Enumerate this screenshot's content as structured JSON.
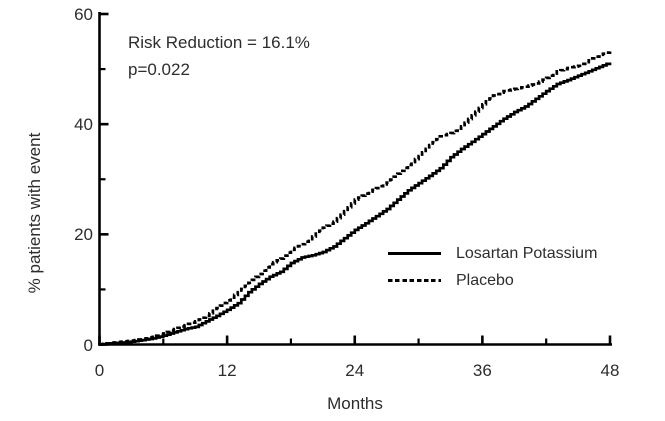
{
  "colors": {
    "background": "#ffffff",
    "line": "#000000",
    "text": "#2d2d2d"
  },
  "annotation": {
    "risk_reduction": "Risk Reduction = 16.1%",
    "p_value": "p=0.022"
  },
  "legend": {
    "items": [
      {
        "label": "Losartan Potassium",
        "line_style": "solid"
      },
      {
        "label": "Placebo",
        "line_style": "dashed"
      }
    ]
  },
  "chart_data": {
    "type": "line",
    "title": "",
    "xlabel": "Months",
    "ylabel": "% patients with event",
    "xlim": [
      0,
      48
    ],
    "ylim": [
      0,
      60
    ],
    "x_ticks": [
      0,
      12,
      24,
      36,
      48
    ],
    "x_minor_ticks": [
      6,
      18,
      30,
      42
    ],
    "y_ticks": [
      0,
      20,
      40,
      60
    ],
    "y_minor_ticks": [
      10,
      30,
      50
    ],
    "grid": false,
    "legend_position": "inside-lower-right",
    "annotations": [
      "Risk Reduction = 16.1%",
      "p=0.022"
    ],
    "series": [
      {
        "name": "Losartan Potassium",
        "line_style": "solid",
        "x": [
          0,
          1,
          2,
          3,
          4,
          5,
          6,
          7,
          8,
          9,
          10,
          11,
          12,
          13,
          14,
          15,
          16,
          17,
          18,
          19,
          20,
          21,
          22,
          23,
          24,
          25,
          26,
          27,
          28,
          29,
          30,
          31,
          32,
          33,
          34,
          35,
          36,
          37,
          38,
          39,
          40,
          41,
          42,
          43,
          44,
          45,
          46,
          47,
          48
        ],
        "y": [
          0,
          0.2,
          0.3,
          0.5,
          0.8,
          1.1,
          1.6,
          2.2,
          2.8,
          3.2,
          4.2,
          5.2,
          6.3,
          7.5,
          9.5,
          11.0,
          12.3,
          13.2,
          14.8,
          15.8,
          16.2,
          16.8,
          17.8,
          19.3,
          20.8,
          22.0,
          23.3,
          24.6,
          26.3,
          28.0,
          29.3,
          30.6,
          32.0,
          34.0,
          35.5,
          36.8,
          38.2,
          39.6,
          41.0,
          42.2,
          43.2,
          44.6,
          46.0,
          47.3,
          48.0,
          48.8,
          49.6,
          50.4,
          51.2
        ]
      },
      {
        "name": "Placebo",
        "line_style": "dashed",
        "x": [
          0,
          1,
          2,
          3,
          4,
          5,
          6,
          7,
          8,
          9,
          10,
          11,
          12,
          13,
          14,
          15,
          16,
          17,
          18,
          19,
          20,
          21,
          22,
          23,
          24,
          25,
          26,
          27,
          28,
          29,
          30,
          31,
          32,
          33,
          34,
          35,
          36,
          37,
          38,
          39,
          40,
          41,
          42,
          43,
          44,
          45,
          46,
          47,
          48
        ],
        "y": [
          0,
          0.3,
          0.5,
          0.7,
          1.0,
          1.4,
          2.0,
          2.8,
          3.5,
          4.2,
          5.2,
          6.6,
          8.0,
          9.5,
          11.2,
          12.8,
          14.6,
          15.6,
          17.2,
          18.2,
          19.6,
          21.2,
          22.3,
          24.2,
          26.3,
          27.4,
          28.4,
          29.4,
          31.0,
          32.6,
          34.2,
          36.2,
          37.8,
          38.4,
          39.6,
          41.6,
          43.6,
          45.2,
          46.0,
          46.4,
          46.8,
          47.4,
          48.4,
          49.6,
          50.2,
          50.6,
          51.6,
          52.6,
          53.2
        ]
      }
    ]
  }
}
